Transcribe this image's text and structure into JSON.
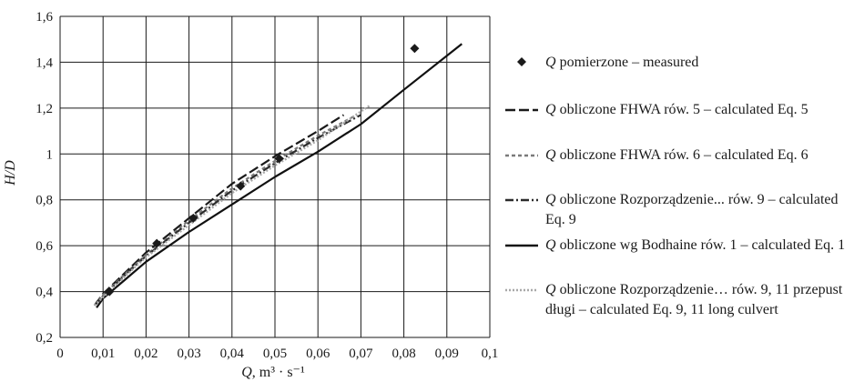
{
  "chart_data": {
    "type": "line",
    "xlabel": "Q, m³ · s⁻¹",
    "ylabel": "H/D",
    "xlim": [
      0,
      0.1
    ],
    "ylim": [
      0.2,
      1.6
    ],
    "x_ticks": [
      "0",
      "0,01",
      "0,02",
      "0,03",
      "0,04",
      "0,05",
      "0,06",
      "0,07",
      "0,08",
      "0,09",
      "0,1"
    ],
    "y_ticks": [
      "0,2",
      "0,4",
      "0,6",
      "0,8",
      "1",
      "1,2",
      "1,4",
      "1,6"
    ],
    "grid": true,
    "legend_position": "right",
    "series": [
      {
        "name": "Q pomierzone – measured",
        "style": "markers",
        "x": [
          0.0115,
          0.0225,
          0.031,
          0.042,
          0.051,
          0.0825
        ],
        "y": [
          0.4,
          0.61,
          0.72,
          0.86,
          0.98,
          1.46
        ]
      },
      {
        "name": "Q obliczone FHWA rów. 5 – calculated Eq. 5",
        "style": "long-dash",
        "x": [
          0.008,
          0.01,
          0.015,
          0.02,
          0.03,
          0.04,
          0.05,
          0.06,
          0.066
        ],
        "y": [
          0.34,
          0.39,
          0.48,
          0.57,
          0.72,
          0.87,
          0.99,
          1.1,
          1.17
        ]
      },
      {
        "name": "Q obliczone FHWA rów. 6 – calculated Eq. 6",
        "style": "short-dash",
        "x": [
          0.008,
          0.01,
          0.015,
          0.02,
          0.03,
          0.04,
          0.05,
          0.06,
          0.069
        ],
        "y": [
          0.34,
          0.385,
          0.475,
          0.56,
          0.71,
          0.85,
          0.97,
          1.08,
          1.17
        ]
      },
      {
        "name": "Q obliczone Rozporządzenie... rów. 9 – calculated Eq. 9",
        "style": "dash-dot",
        "x": [
          0.008,
          0.01,
          0.015,
          0.02,
          0.03,
          0.04,
          0.05,
          0.06,
          0.07
        ],
        "y": [
          0.34,
          0.38,
          0.47,
          0.555,
          0.7,
          0.84,
          0.96,
          1.07,
          1.17
        ]
      },
      {
        "name": "Q obliczone wg Bodhaine rów. 1 – calculated Eq. 1",
        "style": "solid",
        "x": [
          0.0085,
          0.01,
          0.015,
          0.02,
          0.03,
          0.04,
          0.05,
          0.06,
          0.07,
          0.08,
          0.0935
        ],
        "y": [
          0.33,
          0.37,
          0.45,
          0.53,
          0.66,
          0.78,
          0.9,
          1.01,
          1.13,
          1.28,
          1.48
        ]
      },
      {
        "name": "Q obliczone Rozporządzenie… rów. 9, 11 przepust długi – calculated Eq. 9, 11 long culvert",
        "style": "dotted",
        "x": [
          0.008,
          0.01,
          0.015,
          0.02,
          0.03,
          0.04,
          0.05,
          0.06,
          0.072
        ],
        "y": [
          0.34,
          0.375,
          0.465,
          0.55,
          0.69,
          0.83,
          0.95,
          1.06,
          1.21
        ]
      }
    ]
  },
  "legend": [
    {
      "q": "Q",
      "text": " pomierzone – measured"
    },
    {
      "q": "Q",
      "text": " obliczone FHWA rów. 5 – calculated Eq. 5"
    },
    {
      "q": "Q",
      "text": " obliczone FHWA rów. 6 – calculated Eq. 6"
    },
    {
      "q": "Q",
      "text": " obliczone Rozporządzenie... rów. 9 – calculated Eq. 9"
    },
    {
      "q": "Q",
      "text": " obliczone wg Bodhaine rów. 1 – calculated Eq. 1"
    },
    {
      "q": "Q",
      "text": " obliczone Rozporządzenie… rów. 9, 11 przepust długi – calculated Eq. 9, 11  long culvert"
    }
  ],
  "colors": {
    "grid": "#1a1a1a",
    "measured": "#1a1a1a",
    "fhwa5": "#1a1a1a",
    "fhwa6": "#7a7a7a",
    "rozp9": "#2b2b2b",
    "bodhaine": "#111111",
    "rozp911": "#a8a8a8"
  }
}
